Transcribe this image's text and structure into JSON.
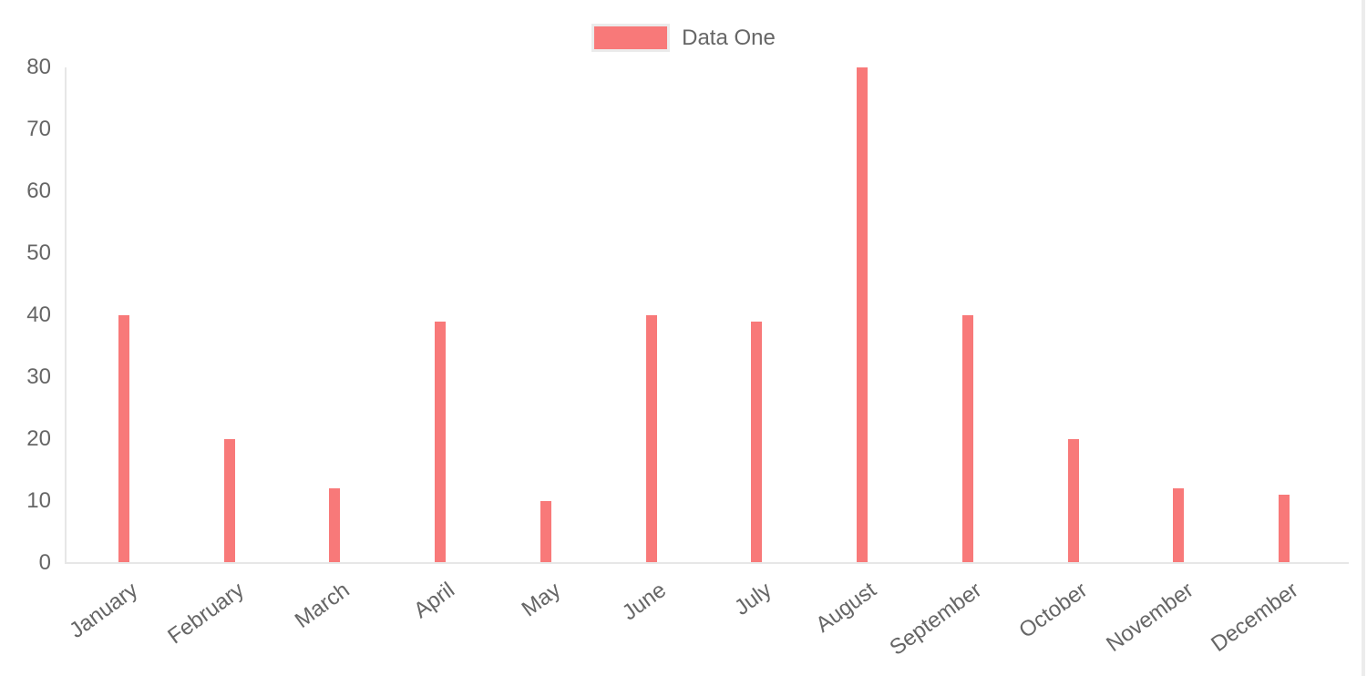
{
  "legend": {
    "label": "Data One",
    "swatch_color": "#f87979"
  },
  "chart_data": {
    "type": "bar",
    "title": "",
    "xlabel": "",
    "ylabel": "",
    "categories": [
      "January",
      "February",
      "March",
      "April",
      "May",
      "June",
      "July",
      "August",
      "September",
      "October",
      "November",
      "December"
    ],
    "series": [
      {
        "name": "Data One",
        "color": "#f87979",
        "values": [
          40,
          20,
          12,
          39,
          10,
          40,
          39,
          80,
          40,
          20,
          12,
          11
        ]
      }
    ],
    "ylim": [
      0,
      80
    ],
    "y_ticks": [
      0,
      10,
      20,
      30,
      40,
      50,
      60,
      70,
      80
    ],
    "grid": false,
    "legend_position": "top",
    "x_tick_rotation_deg": -36
  },
  "colors": {
    "bar": "#f87979",
    "axis_line": "#e7e7e7",
    "tick_text": "#666666",
    "legend_border": "#ebebeb",
    "right_divider": "#ececec",
    "background": "#ffffff"
  }
}
